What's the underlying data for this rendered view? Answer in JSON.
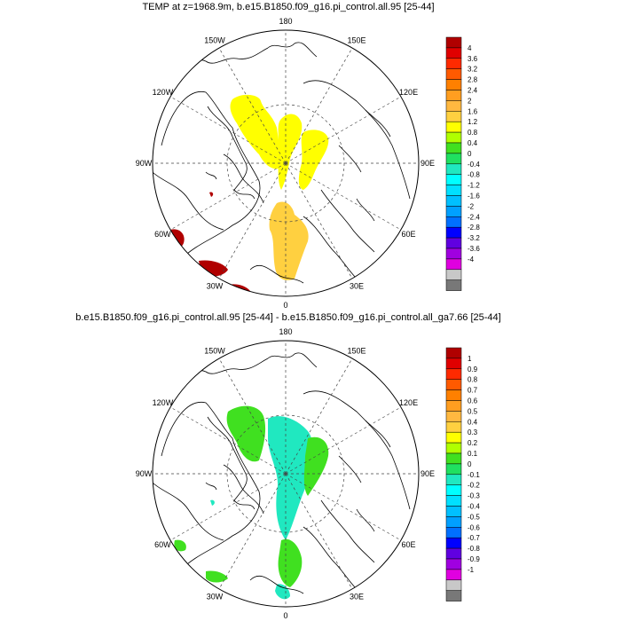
{
  "panels": [
    {
      "id": "top",
      "title": "TEMP at z=1968.9m, b.e15.B1850.f09_g16.pi_control.all.95 [25-44]",
      "colorbar_labels": [
        "4",
        "3.6",
        "3.2",
        "2.8",
        "2.4",
        "2",
        "1.6",
        "1.2",
        "0.8",
        "0.4",
        "0",
        "-0.4",
        "-0.8",
        "-1.2",
        "-1.6",
        "-2",
        "-2.4",
        "-2.8",
        "-3.2",
        "-3.6",
        "-4"
      ]
    },
    {
      "id": "bottom",
      "title": "b.e15.B1850.f09_g16.pi_control.all.95 [25-44] - b.e15.B1850.f09_g16.pi_control.all_ga7.66 [25-44]",
      "colorbar_labels": [
        "1",
        "0.9",
        "0.8",
        "0.7",
        "0.6",
        "0.5",
        "0.4",
        "0.3",
        "0.2",
        "0.1",
        "0",
        "-0.1",
        "-0.2",
        "-0.3",
        "-0.4",
        "-0.5",
        "-0.6",
        "-0.7",
        "-0.8",
        "-0.9",
        "-1"
      ]
    }
  ],
  "longitude_labels": [
    "180",
    "150E",
    "120E",
    "90E",
    "60E",
    "30E",
    "0",
    "30W",
    "60W",
    "90W",
    "120W",
    "150W"
  ],
  "colorbar_colors": [
    "#b00000",
    "#e00000",
    "#ff2a00",
    "#ff5a00",
    "#ff8000",
    "#ff9e20",
    "#ffb840",
    "#ffd040",
    "#ffff00",
    "#b0ff00",
    "#40e020",
    "#20e060",
    "#20e8c0",
    "#00ffff",
    "#00e0ff",
    "#00c0ff",
    "#00a0ff",
    "#0070ff",
    "#0000ff",
    "#6000e0",
    "#a000e0",
    "#e000e0",
    "#c8c8c8",
    "#787878"
  ]
}
